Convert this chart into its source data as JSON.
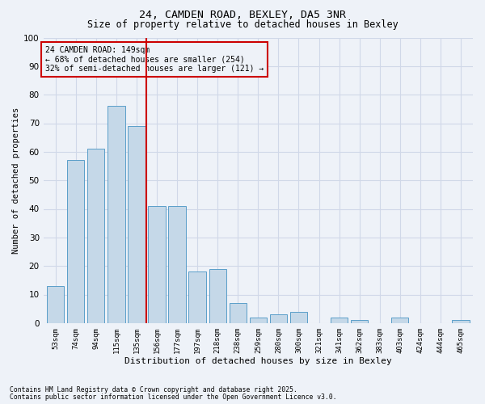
{
  "title1": "24, CAMDEN ROAD, BEXLEY, DA5 3NR",
  "title2": "Size of property relative to detached houses in Bexley",
  "xlabel": "Distribution of detached houses by size in Bexley",
  "ylabel": "Number of detached properties",
  "categories": [
    "53sqm",
    "74sqm",
    "94sqm",
    "115sqm",
    "135sqm",
    "156sqm",
    "177sqm",
    "197sqm",
    "218sqm",
    "238sqm",
    "259sqm",
    "280sqm",
    "300sqm",
    "321sqm",
    "341sqm",
    "362sqm",
    "383sqm",
    "403sqm",
    "424sqm",
    "444sqm",
    "465sqm"
  ],
  "values": [
    13,
    57,
    61,
    76,
    69,
    41,
    41,
    18,
    19,
    7,
    2,
    3,
    4,
    0,
    2,
    1,
    0,
    2,
    0,
    0,
    1
  ],
  "bar_color": "#c5d8e8",
  "bar_edge_color": "#5a9ec9",
  "vline_x_index": 5,
  "vline_color": "#cc0000",
  "annotation_box_text": "24 CAMDEN ROAD: 149sqm\n← 68% of detached houses are smaller (254)\n32% of semi-detached houses are larger (121) →",
  "annotation_box_color": "#cc0000",
  "ylim": [
    0,
    100
  ],
  "yticks": [
    0,
    10,
    20,
    30,
    40,
    50,
    60,
    70,
    80,
    90,
    100
  ],
  "grid_color": "#d0d8e8",
  "bg_color": "#eef2f8",
  "footer1": "Contains HM Land Registry data © Crown copyright and database right 2025.",
  "footer2": "Contains public sector information licensed under the Open Government Licence v3.0."
}
